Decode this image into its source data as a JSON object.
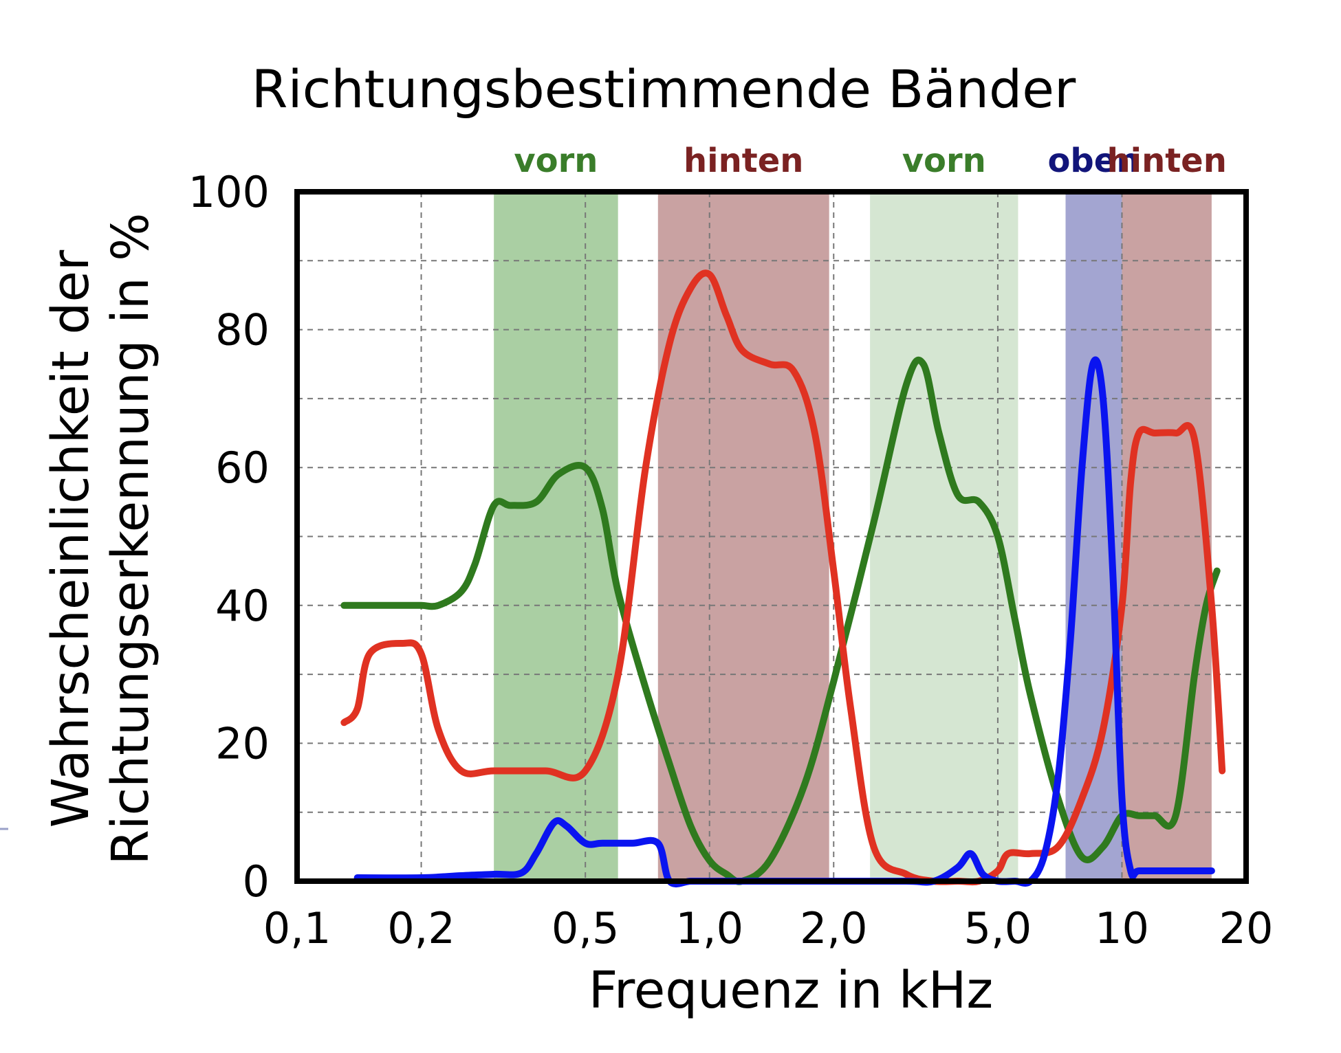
{
  "chart_data": {
    "type": "line",
    "title": "Richtungsbestimmende Bänder",
    "xlabel": "Frequenz in kHz",
    "ylabel_lines": [
      "Wahrscheinlichkeit der",
      "Richtungserkennung in %"
    ],
    "x_scale": "log",
    "xlim": [
      0.1,
      20
    ],
    "ylim": [
      0,
      100
    ],
    "x_ticks": [
      {
        "value": 0.1,
        "label": "0,1"
      },
      {
        "value": 0.2,
        "label": "0,2"
      },
      {
        "value": 0.5,
        "label": "0,5"
      },
      {
        "value": 1.0,
        "label": "1,0"
      },
      {
        "value": 2.0,
        "label": "2,0"
      },
      {
        "value": 5.0,
        "label": "5,0"
      },
      {
        "value": 10,
        "label": "10"
      },
      {
        "value": 20,
        "label": "20"
      }
    ],
    "y_ticks": [
      {
        "value": 0,
        "label": "0"
      },
      {
        "value": 20,
        "label": "20"
      },
      {
        "value": 40,
        "label": "40"
      },
      {
        "value": 60,
        "label": "60"
      },
      {
        "value": 80,
        "label": "80"
      },
      {
        "value": 100,
        "label": "100"
      }
    ],
    "y_minor_grid": [
      10,
      30,
      50,
      70,
      90
    ],
    "grid": true,
    "bands": [
      {
        "label": "vorn",
        "x_start": 0.3,
        "x_end": 0.6,
        "fill": "#aacfa3",
        "label_color": "#3a7d2a"
      },
      {
        "label": "hinten",
        "x_start": 0.75,
        "x_end": 1.95,
        "fill": "#c9a2a2",
        "label_color": "#7a2222"
      },
      {
        "label": "vorn",
        "x_start": 2.45,
        "x_end": 5.6,
        "fill": "#d5e6d2",
        "label_color": "#3a7d2a"
      },
      {
        "label": "oben",
        "x_start": 7.3,
        "x_end": 10.0,
        "fill": "#a3a5d1",
        "label_color": "#12157a"
      },
      {
        "label": "hinten",
        "x_start": 10.0,
        "x_end": 16.5,
        "fill": "#c9a2a2",
        "label_color": "#7a2222"
      }
    ],
    "series": [
      {
        "color": "#2f7a1e",
        "x": [
          0.13,
          0.15,
          0.18,
          0.2,
          0.22,
          0.25,
          0.27,
          0.3,
          0.33,
          0.38,
          0.43,
          0.5,
          0.55,
          0.6,
          0.7,
          0.8,
          0.9,
          1.0,
          1.1,
          1.2,
          1.4,
          1.7,
          2.0,
          2.5,
          3.0,
          3.3,
          3.6,
          4.0,
          4.5,
          5.0,
          5.5,
          6.0,
          7.0,
          8.0,
          9.0,
          10.0,
          11.0,
          12.0,
          13.5,
          15.0,
          16.0,
          17.0
        ],
        "y": [
          40,
          40,
          40,
          40,
          40,
          42,
          46,
          54.5,
          54.5,
          55,
          59,
          60,
          54,
          42,
          28,
          17,
          8,
          3,
          1,
          0,
          3,
          14,
          29,
          52,
          72,
          75,
          65,
          56,
          55,
          50,
          38,
          27,
          12,
          3.5,
          5,
          9.5,
          9.5,
          9.5,
          9.5,
          30,
          40,
          45
        ]
      },
      {
        "color": "#e03222",
        "x": [
          0.13,
          0.14,
          0.15,
          0.18,
          0.2,
          0.22,
          0.25,
          0.3,
          0.4,
          0.5,
          0.6,
          0.7,
          0.8,
          0.9,
          1.0,
          1.1,
          1.2,
          1.4,
          1.6,
          1.8,
          2.0,
          2.2,
          2.5,
          3.0,
          3.5,
          4.0,
          4.5,
          5.0,
          5.3,
          6.0,
          7.0,
          8.0,
          9.0,
          10.0,
          10.5,
          11.0,
          12.0,
          13.5,
          15.0,
          16.5,
          17.5
        ],
        "y": [
          23,
          25,
          33,
          34.5,
          33,
          22,
          16,
          16,
          16,
          16,
          30,
          60,
          78,
          86,
          88,
          82,
          77,
          75,
          74,
          65,
          45,
          25,
          5,
          1,
          0,
          0,
          0,
          1.5,
          4,
          4,
          5,
          12,
          22,
          40,
          58,
          65,
          65,
          65,
          64,
          40,
          16
        ]
      },
      {
        "color": "#0a14f0",
        "x": [
          0.14,
          0.2,
          0.25,
          0.3,
          0.35,
          0.38,
          0.42,
          0.45,
          0.5,
          0.55,
          0.65,
          0.75,
          0.8,
          0.9,
          1.0,
          1.5,
          2.0,
          3.0,
          3.5,
          4.0,
          4.3,
          4.6,
          5.0,
          5.5,
          6.0,
          6.5,
          7.0,
          7.5,
          8.0,
          8.5,
          9.0,
          9.5,
          10.0,
          10.5,
          11.0,
          13.0,
          16.5
        ],
        "y": [
          0.5,
          0.5,
          0.8,
          1,
          1.2,
          4,
          8.5,
          8,
          5.5,
          5.5,
          5.5,
          5.5,
          0,
          0,
          0,
          0,
          0,
          0,
          0,
          2,
          4,
          1,
          0,
          0,
          0,
          4,
          15,
          35,
          60,
          75,
          70,
          45,
          12,
          1.5,
          1.5,
          1.5,
          1.5
        ]
      }
    ]
  }
}
